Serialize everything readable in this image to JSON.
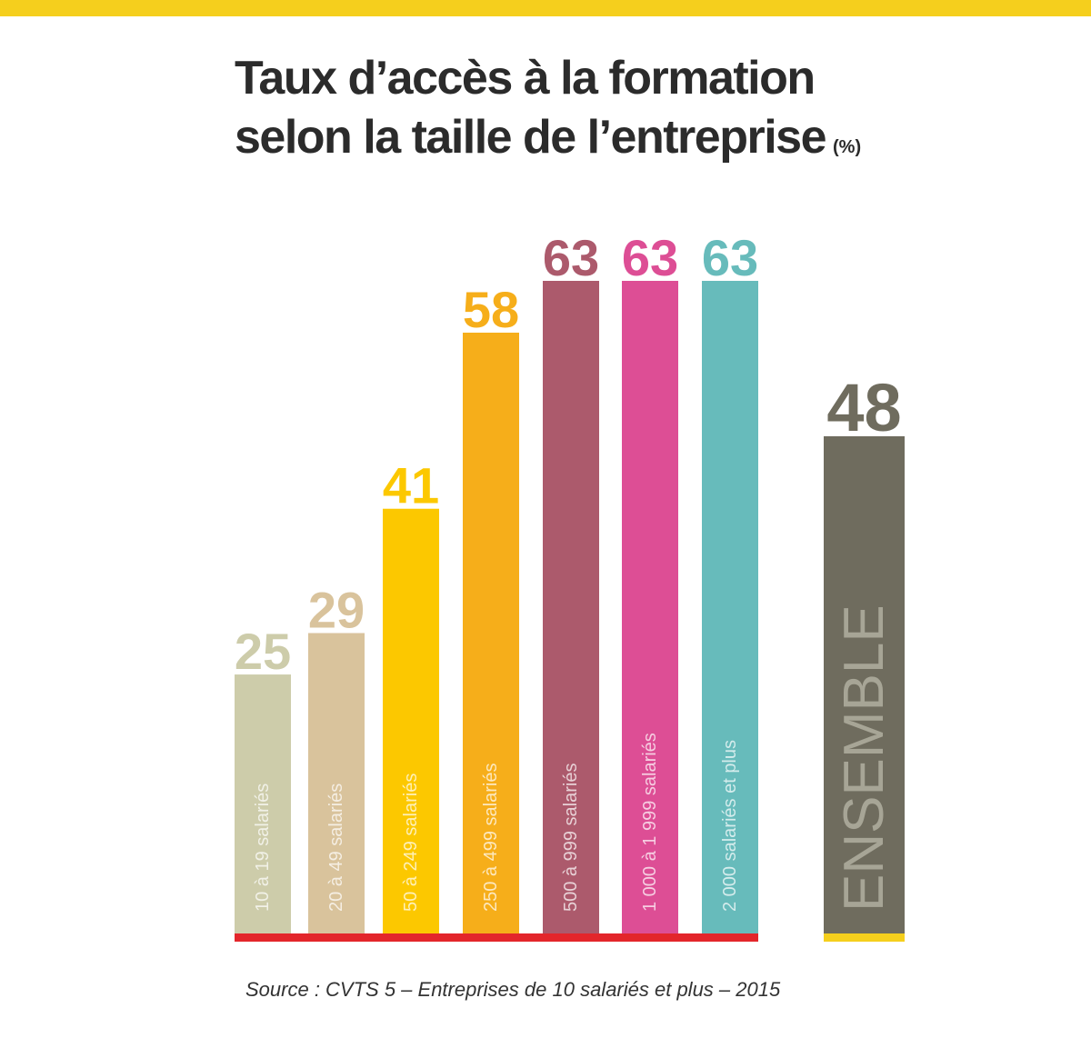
{
  "title": {
    "line1": "Taux d’accès à la formation",
    "line2": "selon la taille de l’entreprise",
    "unit": "(%)"
  },
  "source": "Source : CVTS 5 – Entreprises de 10 salariés et plus – 2015",
  "chart_data": {
    "type": "bar",
    "title": "Taux d’accès à la formation selon la taille de l’entreprise",
    "unit": "(%)",
    "categories": [
      "10 à 19 salariés",
      "20 à 49 salariés",
      "50 à 249 salariés",
      "250 à 499 salariés",
      "500 à 999 salariés",
      "1 000 à 1 999 salariés",
      "2 000 salariés et plus",
      "ENSEMBLE"
    ],
    "values": [
      25,
      29,
      41,
      58,
      63,
      63,
      63,
      48
    ],
    "colors": [
      "#cdccaa",
      "#d9c39c",
      "#fcc800",
      "#f6ae1a",
      "#ac5a6c",
      "#dd4e95",
      "#67bbbb",
      "#6f6c5e"
    ],
    "label_colors": [
      "#cdccaa",
      "#d9c39c",
      "#fcc800",
      "#f6ae1a",
      "#ac5a6c",
      "#dd4e95",
      "#67bbbb",
      "#6f6c5e"
    ],
    "baseline_colors": {
      "groups": "#e3262b",
      "total": "#f5cf1d"
    },
    "ylim": [
      0,
      63
    ],
    "grid": false,
    "legend": "none"
  }
}
